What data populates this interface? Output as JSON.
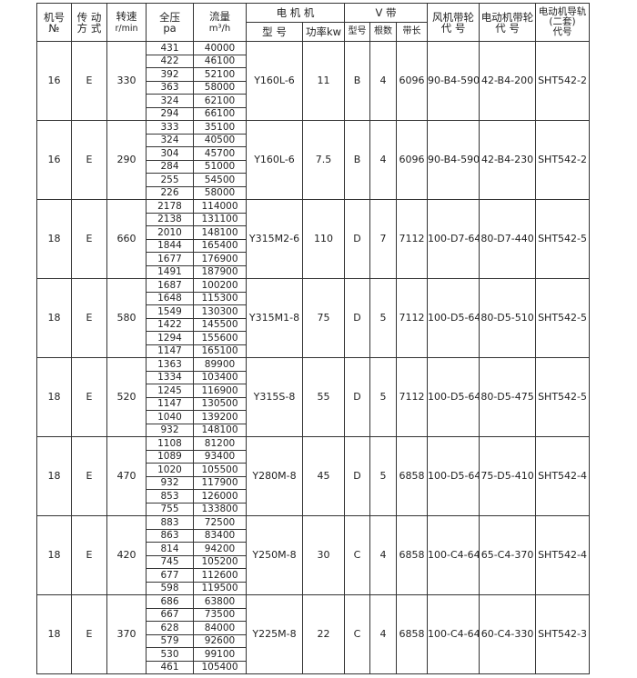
{
  "header": {
    "machine_no": "机号",
    "machine_no_sub": "№",
    "drive": "传 动",
    "drive_sub": "方 式",
    "speed": "转速",
    "speed_sub": "r/min",
    "pressure": "全压",
    "pressure_sub": "pa",
    "flow": "流量",
    "flow_sub": "m³/h",
    "motor": "电 机 机",
    "motor_model": "型 号",
    "motor_power": "功率kw",
    "vbelt": "V 带",
    "belt_type": "型号",
    "belt_count": "根数",
    "belt_length": "带长",
    "fan_pulley": "风机带轮",
    "fan_pulley_sub": "代 号",
    "motor_pulley": "电动机带轮",
    "motor_pulley_sub": "代 号",
    "rail": "电动机导轨",
    "rail_paren": "(二套)",
    "rail_sub": "代号"
  },
  "groups": [
    {
      "no": "16",
      "drive": "E",
      "speed": "330",
      "pressure": [
        "431",
        "422",
        "392",
        "363",
        "324",
        "294"
      ],
      "flow": [
        "40000",
        "46100",
        "52100",
        "58000",
        "62100",
        "66100"
      ],
      "model": "Y160L-6",
      "power": "11",
      "belt_type": "B",
      "belt_count": "4",
      "belt_length": "6096",
      "fan_pulley": "90-B4-590",
      "motor_pulley": "42-B4-200",
      "rail": "SHT542-2"
    },
    {
      "no": "16",
      "drive": "E",
      "speed": "290",
      "pressure": [
        "333",
        "324",
        "304",
        "284",
        "255",
        "226"
      ],
      "flow": [
        "35100",
        "40500",
        "45700",
        "51000",
        "54500",
        "58000"
      ],
      "model": "Y160L-6",
      "power": "7.5",
      "belt_type": "B",
      "belt_count": "4",
      "belt_length": "6096",
      "fan_pulley": "90-B4-590",
      "motor_pulley": "42-B4-230",
      "rail": "SHT542-2"
    },
    {
      "no": "18",
      "drive": "E",
      "speed": "660",
      "pressure": [
        "2178",
        "2138",
        "2010",
        "1844",
        "1677",
        "1491"
      ],
      "flow": [
        "114000",
        "131100",
        "148100",
        "165400",
        "176900",
        "187900"
      ],
      "model": "Y315M2-6",
      "power": "110",
      "belt_type": "D",
      "belt_count": "7",
      "belt_length": "7112",
      "fan_pulley": "100-D7-640",
      "motor_pulley": "80-D7-440",
      "rail": "SHT542-5"
    },
    {
      "no": "18",
      "drive": "E",
      "speed": "580",
      "pressure": [
        "1687",
        "1648",
        "1549",
        "1422",
        "1294",
        "1147"
      ],
      "flow": [
        "100200",
        "115300",
        "130300",
        "145500",
        "155600",
        "165100"
      ],
      "model": "Y315M1-8",
      "power": "75",
      "belt_type": "D",
      "belt_count": "5",
      "belt_length": "7112",
      "fan_pulley": "100-D5-640",
      "motor_pulley": "80-D5-510",
      "rail": "SHT542-5"
    },
    {
      "no": "18",
      "drive": "E",
      "speed": "520",
      "pressure": [
        "1363",
        "1334",
        "1245",
        "1147",
        "1040",
        "932"
      ],
      "flow": [
        "89900",
        "103400",
        "116900",
        "130500",
        "139200",
        "148100"
      ],
      "model": "Y315S-8",
      "power": "55",
      "belt_type": "D",
      "belt_count": "5",
      "belt_length": "7112",
      "fan_pulley": "100-D5-640",
      "motor_pulley": "80-D5-475",
      "rail": "SHT542-5"
    },
    {
      "no": "18",
      "drive": "E",
      "speed": "470",
      "pressure": [
        "1108",
        "1089",
        "1020",
        "932",
        "853",
        "755"
      ],
      "flow": [
        "81200",
        "93400",
        "105500",
        "117900",
        "126000",
        "133800"
      ],
      "model": "Y280M-8",
      "power": "45",
      "belt_type": "D",
      "belt_count": "5",
      "belt_length": "6858",
      "fan_pulley": "100-D5-640",
      "motor_pulley": "75-D5-410",
      "rail": "SHT542-4"
    },
    {
      "no": "18",
      "drive": "E",
      "speed": "420",
      "pressure": [
        "883",
        "863",
        "814",
        "745",
        "677",
        "598"
      ],
      "flow": [
        "72500",
        "83400",
        "94200",
        "105200",
        "112600",
        "119500"
      ],
      "model": "Y250M-8",
      "power": "30",
      "belt_type": "C",
      "belt_count": "4",
      "belt_length": "6858",
      "fan_pulley": "100-C4-640",
      "motor_pulley": "65-C4-370",
      "rail": "SHT542-4"
    },
    {
      "no": "18",
      "drive": "E",
      "speed": "370",
      "pressure": [
        "686",
        "667",
        "628",
        "579",
        "530",
        "461"
      ],
      "flow": [
        "63800",
        "73500",
        "84000",
        "92600",
        "99100",
        "105400"
      ],
      "model": "Y225M-8",
      "power": "22",
      "belt_type": "C",
      "belt_count": "4",
      "belt_length": "6858",
      "fan_pulley": "100-C4-640",
      "motor_pulley": "60-C4-330",
      "rail": "SHT542-3"
    }
  ]
}
